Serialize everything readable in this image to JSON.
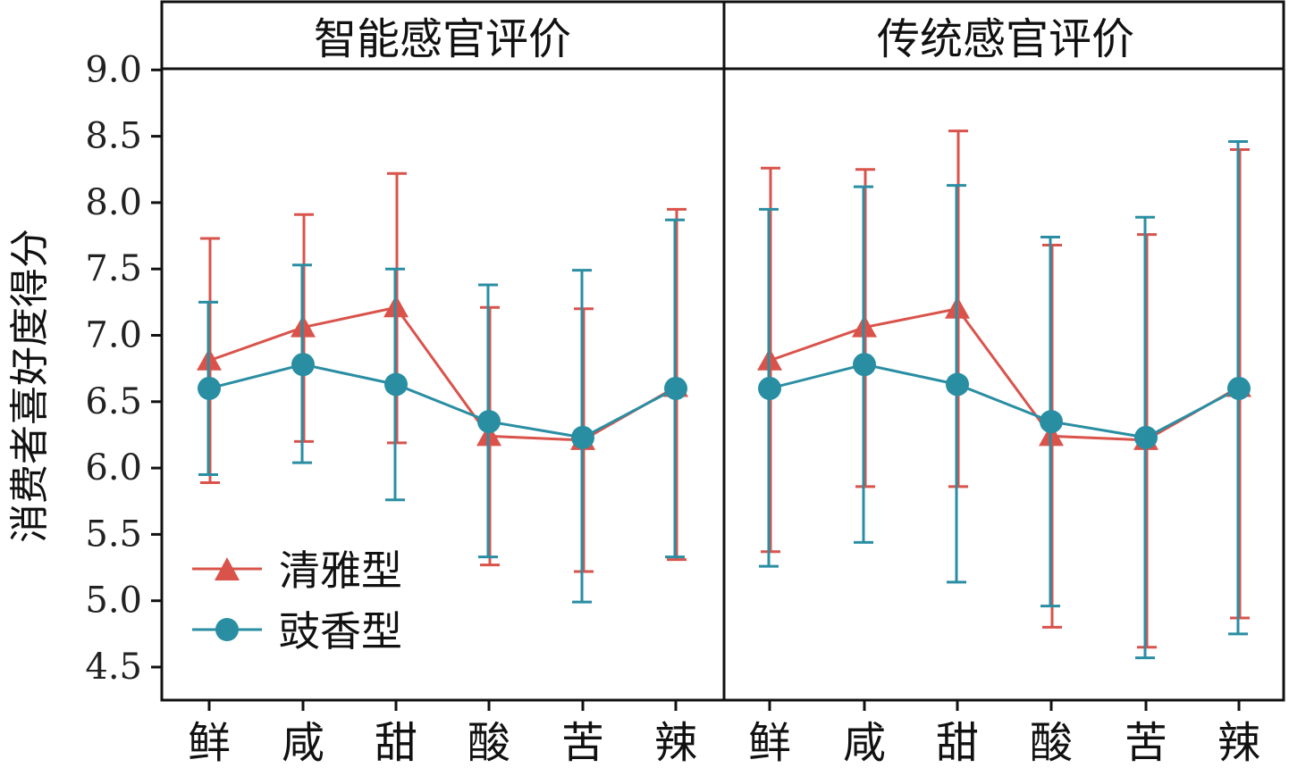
{
  "chart_data": {
    "type": "line",
    "ylabel": "消费者喜好度得分",
    "ylim": [
      4.4,
      9.0
    ],
    "yticks": [
      "4.5",
      "5.0",
      "5.5",
      "6.0",
      "6.5",
      "7.0",
      "7.5",
      "8.0",
      "8.5",
      "9.0"
    ],
    "categories": [
      "鲜",
      "咸",
      "甜",
      "酸",
      "苦",
      "辣"
    ],
    "colors": {
      "qingya": "#d9534b",
      "chixiang": "#2a8ea3",
      "axis": "#111111"
    },
    "legend": {
      "position": "bottom-left",
      "entries": [
        {
          "label": "清雅型",
          "marker": "triangle",
          "color": "#d9534b"
        },
        {
          "label": "豉香型",
          "marker": "circle",
          "color": "#2a8ea3"
        }
      ]
    },
    "panels": [
      {
        "title": "智能感官评价",
        "series": [
          {
            "name": "清雅型",
            "values": [
              6.81,
              7.06,
              7.21,
              6.24,
              6.21,
              6.61
            ],
            "upper": [
              7.73,
              7.91,
              8.22,
              7.21,
              7.2,
              7.95
            ],
            "lower": [
              5.89,
              6.2,
              6.19,
              5.27,
              5.22,
              5.31
            ]
          },
          {
            "name": "豉香型",
            "values": [
              6.6,
              6.78,
              6.63,
              6.35,
              6.23,
              6.6
            ],
            "upper": [
              7.25,
              7.53,
              7.5,
              7.38,
              7.49,
              7.87
            ],
            "lower": [
              5.95,
              6.04,
              5.76,
              5.33,
              4.99,
              5.33
            ]
          }
        ]
      },
      {
        "title": "传统感官评价",
        "series": [
          {
            "name": "清雅型",
            "values": [
              6.81,
              7.06,
              7.2,
              6.24,
              6.21,
              6.61
            ],
            "upper": [
              8.26,
              8.25,
              8.54,
              7.68,
              7.76,
              8.4
            ],
            "lower": [
              5.37,
              5.86,
              5.86,
              4.8,
              4.65,
              4.87
            ]
          },
          {
            "name": "豉香型",
            "values": [
              6.6,
              6.78,
              6.63,
              6.35,
              6.23,
              6.6
            ],
            "upper": [
              7.95,
              8.12,
              8.13,
              7.74,
              7.89,
              8.46
            ],
            "lower": [
              5.26,
              5.44,
              5.14,
              4.96,
              4.57,
              4.75
            ]
          }
        ]
      }
    ]
  }
}
